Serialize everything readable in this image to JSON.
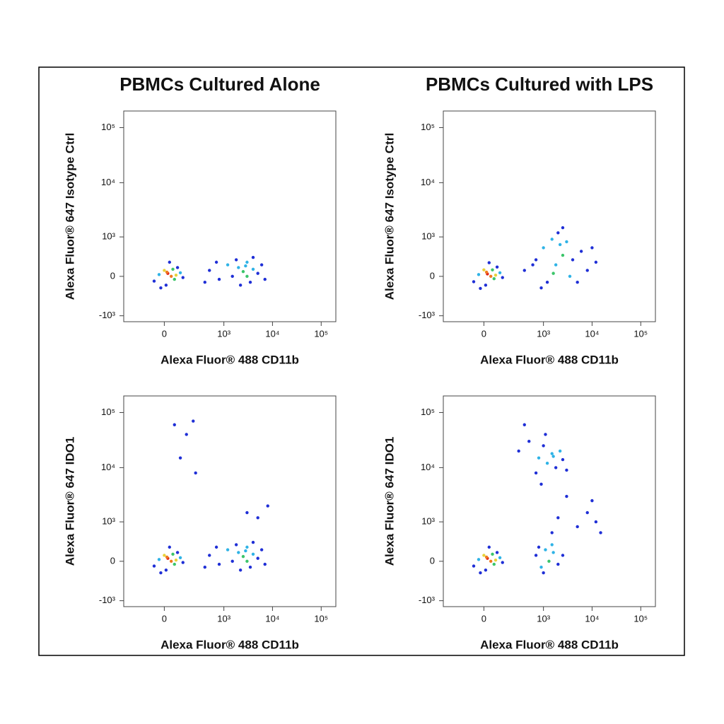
{
  "chart_data": [
    {
      "type": "scatter",
      "title": "PBMCs Cultured Alone",
      "xlabel": "Alexa Fluor® 488 CD11b",
      "ylabel": "Alexa Fluor® 647 Isotype Ctrl",
      "xscale": "biexponential",
      "yscale": "biexponential",
      "xlim": [
        -400,
        200000
      ],
      "ylim": [
        -1300,
        200000
      ],
      "xticks": [
        0,
        {
          "value": 1000,
          "label": "10³"
        },
        {
          "value": 10000,
          "label": "10⁴"
        },
        {
          "value": 100000,
          "label": "10⁵"
        }
      ],
      "yticks": [
        {
          "value": -1000,
          "label": "-10³"
        },
        0,
        {
          "value": 1000,
          "label": "10³"
        },
        {
          "value": 10000,
          "label": "10⁴"
        },
        {
          "value": 100000,
          "label": "10⁵"
        }
      ],
      "x": [
        20,
        40,
        0,
        60,
        -30,
        80,
        10,
        100,
        -60,
        30,
        120,
        50,
        -20,
        70,
        15,
        500,
        800,
        1200,
        1500,
        2000,
        2500,
        3000,
        3500,
        4000,
        5000,
        6000,
        7000,
        2200,
        1800,
        3000,
        4000,
        700,
        400,
        2800
      ],
      "y": [
        50,
        0,
        100,
        -50,
        30,
        150,
        -150,
        60,
        -80,
        250,
        -20,
        120,
        -200,
        20,
        70,
        100,
        -50,
        200,
        0,
        150,
        80,
        250,
        -100,
        120,
        50,
        200,
        -50,
        -150,
        300,
        0,
        350,
        250,
        -100,
        180
      ],
      "point_colors": [
        "#e0261b",
        "#f07a1e",
        "#e8d23a",
        "#3cc56a",
        "#2fb3e6",
        "#1f2fd6",
        "#1f2fd6",
        "#2fb3e6",
        "#1f2fd6",
        "#1f2fd6",
        "#1f2fd6",
        "#3cc56a",
        "#1f2fd6",
        "#e8d23a",
        "#f07a1e",
        "#1f2fd6",
        "#1f2fd6",
        "#2fb3e6",
        "#1f2fd6",
        "#2fb3e6",
        "#3cc56a",
        "#2fb3e6",
        "#1f2fd6",
        "#2fb3e6",
        "#1f2fd6",
        "#1f2fd6",
        "#1f2fd6",
        "#1f2fd6",
        "#1f2fd6",
        "#3cc56a",
        "#1f2fd6",
        "#1f2fd6",
        "#1f2fd6",
        "#2fb3e6"
      ]
    },
    {
      "type": "scatter",
      "title": "PBMCs Cultured with LPS",
      "xlabel": "Alexa Fluor® 488 CD11b",
      "ylabel": "Alexa Fluor® 647 Isotype Ctrl",
      "xscale": "biexponential",
      "yscale": "biexponential",
      "xlim": [
        -400,
        200000
      ],
      "ylim": [
        -1300,
        200000
      ],
      "xticks": [
        0,
        {
          "value": 1000,
          "label": "10³"
        },
        {
          "value": 10000,
          "label": "10⁴"
        },
        {
          "value": 100000,
          "label": "10⁵"
        }
      ],
      "yticks": [
        {
          "value": -1000,
          "label": "-10³"
        },
        0,
        {
          "value": 1000,
          "label": "10³"
        },
        {
          "value": 10000,
          "label": "10⁴"
        },
        {
          "value": 100000,
          "label": "10⁵"
        }
      ],
      "x": [
        20,
        40,
        0,
        60,
        -30,
        80,
        10,
        100,
        -60,
        30,
        120,
        50,
        -20,
        70,
        15,
        400,
        700,
        1000,
        1500,
        2000,
        2500,
        3000,
        1200,
        1800,
        2500,
        4000,
        6000,
        8000,
        10000,
        12000,
        900,
        1600,
        3500,
        600,
        2200,
        5000
      ],
      "y": [
        40,
        0,
        110,
        -40,
        30,
        160,
        -150,
        60,
        -90,
        240,
        -20,
        110,
        -210,
        20,
        70,
        100,
        300,
        600,
        900,
        1200,
        400,
        800,
        -100,
        200,
        1500,
        300,
        500,
        100,
        600,
        250,
        -200,
        50,
        0,
        200,
        700,
        -100
      ],
      "point_colors": [
        "#e0261b",
        "#f07a1e",
        "#e8d23a",
        "#3cc56a",
        "#2fb3e6",
        "#1f2fd6",
        "#1f2fd6",
        "#2fb3e6",
        "#1f2fd6",
        "#1f2fd6",
        "#1f2fd6",
        "#3cc56a",
        "#1f2fd6",
        "#e8d23a",
        "#f07a1e",
        "#1f2fd6",
        "#1f2fd6",
        "#2fb3e6",
        "#2fb3e6",
        "#1f2fd6",
        "#3cc56a",
        "#2fb3e6",
        "#1f2fd6",
        "#2fb3e6",
        "#1f2fd6",
        "#1f2fd6",
        "#1f2fd6",
        "#1f2fd6",
        "#1f2fd6",
        "#1f2fd6",
        "#1f2fd6",
        "#3cc56a",
        "#2fb3e6",
        "#1f2fd6",
        "#2fb3e6",
        "#1f2fd6"
      ]
    },
    {
      "type": "scatter",
      "xlabel": "Alexa Fluor® 488 CD11b",
      "ylabel": "Alexa Fluor® 647 IDO1",
      "xscale": "biexponential",
      "yscale": "biexponential",
      "xlim": [
        -400,
        200000
      ],
      "ylim": [
        -1300,
        200000
      ],
      "xticks": [
        0,
        {
          "value": 1000,
          "label": "10³"
        },
        {
          "value": 10000,
          "label": "10⁴"
        },
        {
          "value": 100000,
          "label": "10⁵"
        }
      ],
      "yticks": [
        {
          "value": -1000,
          "label": "-10³"
        },
        0,
        {
          "value": 1000,
          "label": "10³"
        },
        {
          "value": 10000,
          "label": "10⁴"
        },
        {
          "value": 100000,
          "label": "10⁵"
        }
      ],
      "x": [
        20,
        40,
        0,
        60,
        -30,
        80,
        10,
        100,
        -60,
        30,
        120,
        50,
        -20,
        70,
        15,
        500,
        800,
        1200,
        1500,
        2000,
        2500,
        3000,
        3500,
        4000,
        5000,
        6000,
        7000,
        2200,
        1800,
        3000,
        4000,
        700,
        400,
        2800,
        60,
        150,
        220,
        100,
        250,
        3000,
        5000,
        8000
      ],
      "y": [
        50,
        0,
        100,
        -50,
        30,
        150,
        -150,
        60,
        -80,
        250,
        -20,
        120,
        -200,
        20,
        70,
        100,
        -50,
        200,
        0,
        150,
        80,
        250,
        -100,
        120,
        50,
        200,
        -50,
        -150,
        300,
        0,
        350,
        250,
        -100,
        180,
        60000,
        40000,
        70000,
        15000,
        8000,
        1500,
        1200,
        2000
      ],
      "point_colors": [
        "#e0261b",
        "#f07a1e",
        "#e8d23a",
        "#3cc56a",
        "#2fb3e6",
        "#1f2fd6",
        "#1f2fd6",
        "#2fb3e6",
        "#1f2fd6",
        "#1f2fd6",
        "#1f2fd6",
        "#3cc56a",
        "#1f2fd6",
        "#e8d23a",
        "#f07a1e",
        "#1f2fd6",
        "#1f2fd6",
        "#2fb3e6",
        "#1f2fd6",
        "#2fb3e6",
        "#3cc56a",
        "#2fb3e6",
        "#1f2fd6",
        "#2fb3e6",
        "#1f2fd6",
        "#1f2fd6",
        "#1f2fd6",
        "#1f2fd6",
        "#1f2fd6",
        "#3cc56a",
        "#1f2fd6",
        "#1f2fd6",
        "#1f2fd6",
        "#2fb3e6",
        "#1f2fd6",
        "#1f2fd6",
        "#1f2fd6",
        "#1f2fd6",
        "#1f2fd6",
        "#1f2fd6",
        "#1f2fd6",
        "#1f2fd6"
      ]
    },
    {
      "type": "scatter",
      "xlabel": "Alexa Fluor® 488 CD11b",
      "ylabel": "Alexa Fluor® 647 IDO1",
      "xscale": "biexponential",
      "yscale": "biexponential",
      "xlim": [
        -400,
        200000
      ],
      "ylim": [
        -1300,
        200000
      ],
      "xticks": [
        0,
        {
          "value": 1000,
          "label": "10³"
        },
        {
          "value": 10000,
          "label": "10⁴"
        },
        {
          "value": 100000,
          "label": "10⁵"
        }
      ],
      "yticks": [
        {
          "value": -1000,
          "label": "-10³"
        },
        0,
        {
          "value": 1000,
          "label": "10³"
        },
        {
          "value": 10000,
          "label": "10⁴"
        },
        {
          "value": 100000,
          "label": "10⁵"
        }
      ],
      "x": [
        20,
        40,
        0,
        60,
        -30,
        80,
        10,
        100,
        -60,
        30,
        120,
        50,
        -20,
        70,
        15,
        700,
        900,
        1100,
        1300,
        1600,
        2000,
        1000,
        800,
        1500,
        2500,
        300,
        500,
        800,
        1000,
        1200,
        1500,
        1800,
        2200,
        2500,
        700,
        1100,
        1600,
        3000,
        400,
        900,
        5000,
        8000,
        12000,
        15000,
        10000,
        3000,
        2000,
        1500
      ],
      "y": [
        50,
        0,
        100,
        -50,
        30,
        150,
        -150,
        60,
        -80,
        250,
        -20,
        120,
        -200,
        20,
        70,
        100,
        -100,
        200,
        0,
        150,
        -50,
        -200,
        250,
        300,
        100,
        20000,
        30000,
        15000,
        25000,
        12000,
        18000,
        10000,
        20000,
        14000,
        8000,
        40000,
        16000,
        9000,
        60000,
        5000,
        800,
        1500,
        1000,
        600,
        2500,
        3000,
        1200,
        600
      ],
      "point_colors": [
        "#e0261b",
        "#f07a1e",
        "#e8d23a",
        "#3cc56a",
        "#2fb3e6",
        "#1f2fd6",
        "#1f2fd6",
        "#2fb3e6",
        "#1f2fd6",
        "#1f2fd6",
        "#1f2fd6",
        "#3cc56a",
        "#1f2fd6",
        "#e8d23a",
        "#f07a1e",
        "#1f2fd6",
        "#2fb3e6",
        "#2fb3e6",
        "#3cc56a",
        "#2fb3e6",
        "#1f2fd6",
        "#1f2fd6",
        "#1f2fd6",
        "#2fb3e6",
        "#1f2fd6",
        "#1f2fd6",
        "#1f2fd6",
        "#2fb3e6",
        "#1f2fd6",
        "#2fb3e6",
        "#2fb3e6",
        "#1f2fd6",
        "#2fb3e6",
        "#1f2fd6",
        "#1f2fd6",
        "#1f2fd6",
        "#2fb3e6",
        "#1f2fd6",
        "#1f2fd6",
        "#1f2fd6",
        "#1f2fd6",
        "#1f2fd6",
        "#1f2fd6",
        "#1f2fd6",
        "#1f2fd6",
        "#1f2fd6",
        "#1f2fd6",
        "#1f2fd6"
      ]
    }
  ]
}
